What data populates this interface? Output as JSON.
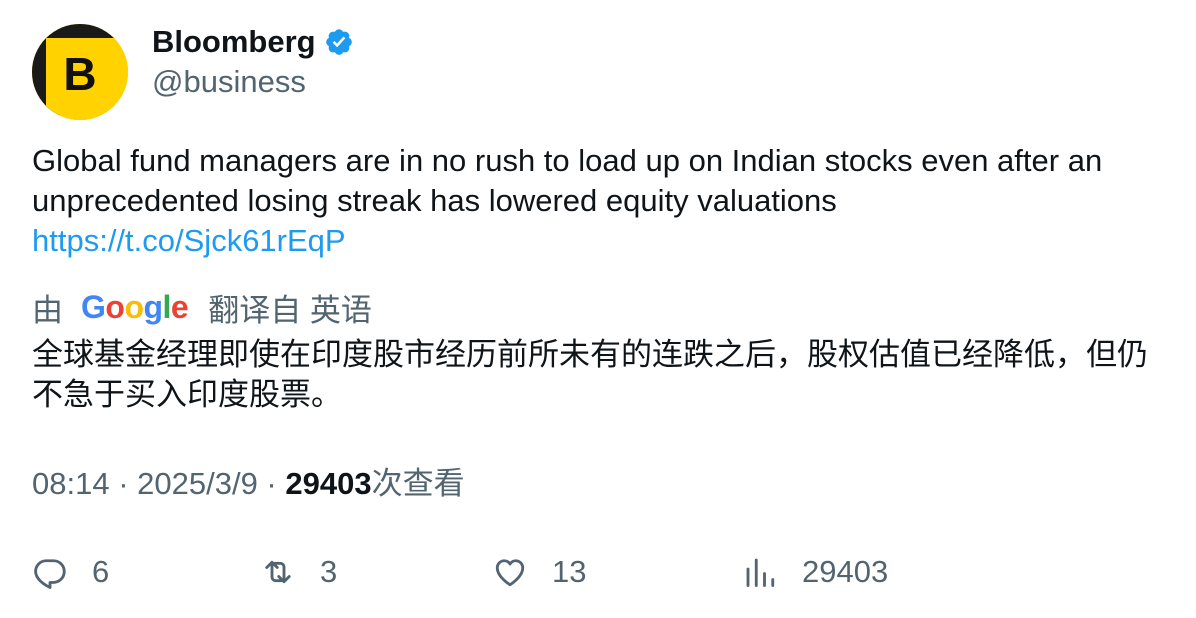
{
  "author": {
    "name": "Bloomberg",
    "handle": "@business",
    "avatar_letter": "B",
    "verified": true,
    "avatar_colors": {
      "background": "#ffd200",
      "letter": "#111111",
      "shade": "#222222"
    }
  },
  "tweet": {
    "text": "Global fund managers are in no rush to load up on Indian stocks even after an unprecedented losing streak has lowered equity valuations",
    "link": "https://t.co/Sjck61rEqP"
  },
  "translation": {
    "prefix": "由",
    "provider": "Google",
    "suffix": "翻译自 英语",
    "text": "全球基金经理即使在印度股市经历前所未有的连跌之后，股权估值已经降低，但仍不急于买入印度股票。"
  },
  "meta": {
    "time": "08:14",
    "date": "2025/3/9",
    "views": "29403",
    "views_label": "次查看"
  },
  "actions": {
    "replies": {
      "icon": "reply-icon",
      "count": "6"
    },
    "retweets": {
      "icon": "retweet-icon",
      "count": "3"
    },
    "likes": {
      "icon": "heart-icon",
      "count": "13"
    },
    "views": {
      "icon": "analytics-icon",
      "count": "29403"
    }
  },
  "colors": {
    "link": "#1d9bf0",
    "verified": "#1d9bf0",
    "secondary_text": "#536471",
    "primary_text": "#0f1419"
  }
}
